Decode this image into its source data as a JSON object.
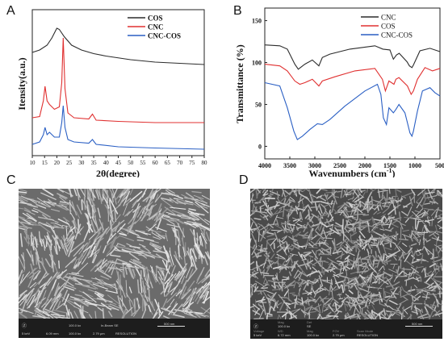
{
  "panels": {
    "a": "A",
    "b": "B",
    "c": "C",
    "d": "D"
  },
  "chart_data": [
    {
      "type": "line",
      "ylabel": "Itensity(a.u.)",
      "xlabel_text": "2",
      "xlabel_theta": "θ",
      "xlabel_unit": "(degree)",
      "xlim": [
        10,
        80
      ],
      "xticks": [
        "10",
        "15",
        "20",
        "25",
        "30",
        "35",
        "40",
        "45",
        "50",
        "55",
        "60",
        "65",
        "70",
        "75",
        "80"
      ],
      "legend_position": "top-right",
      "series": [
        {
          "name": "COS",
          "color": "#2b2b2b",
          "points": [
            [
              10,
              0.8
            ],
            [
              13,
              0.82
            ],
            [
              16,
              0.86
            ],
            [
              18,
              0.92
            ],
            [
              20,
              1.0
            ],
            [
              21,
              0.99
            ],
            [
              23,
              0.93
            ],
            [
              26,
              0.86
            ],
            [
              30,
              0.82
            ],
            [
              35,
              0.79
            ],
            [
              40,
              0.77
            ],
            [
              50,
              0.74
            ],
            [
              60,
              0.72
            ],
            [
              70,
              0.71
            ],
            [
              80,
              0.7
            ]
          ]
        },
        {
          "name": "CNC",
          "color": "#e03030",
          "points": [
            [
              10,
              0.26
            ],
            [
              13,
              0.27
            ],
            [
              14.5,
              0.4
            ],
            [
              15.2,
              0.52
            ],
            [
              16,
              0.4
            ],
            [
              17,
              0.37
            ],
            [
              19,
              0.33
            ],
            [
              21,
              0.35
            ],
            [
              22,
              0.55
            ],
            [
              22.6,
              0.92
            ],
            [
              23.3,
              0.5
            ],
            [
              24.5,
              0.3
            ],
            [
              27,
              0.26
            ],
            [
              33,
              0.25
            ],
            [
              34.5,
              0.29
            ],
            [
              36,
              0.24
            ],
            [
              45,
              0.23
            ],
            [
              60,
              0.22
            ],
            [
              80,
              0.22
            ]
          ]
        },
        {
          "name": "CNC-COS",
          "color": "#2a5fc4",
          "points": [
            [
              10,
              0.04
            ],
            [
              13,
              0.06
            ],
            [
              14.5,
              0.12
            ],
            [
              15.2,
              0.18
            ],
            [
              16,
              0.12
            ],
            [
              17,
              0.14
            ],
            [
              19,
              0.1
            ],
            [
              21,
              0.1
            ],
            [
              22,
              0.22
            ],
            [
              22.6,
              0.36
            ],
            [
              23.3,
              0.18
            ],
            [
              24.5,
              0.08
            ],
            [
              27,
              0.06
            ],
            [
              33,
              0.05
            ],
            [
              34.5,
              0.08
            ],
            [
              36,
              0.04
            ],
            [
              45,
              0.02
            ],
            [
              60,
              0.01
            ],
            [
              80,
              0.0
            ]
          ]
        }
      ]
    },
    {
      "type": "line",
      "ylabel": "Transmittance (%)",
      "xlabel": "Wavenumbers (cm",
      "xlabel_sup": "-1",
      "xlabel_close": ")",
      "xlim": [
        4000,
        500
      ],
      "ylim": [
        -15,
        165
      ],
      "xticks": [
        "4000",
        "3500",
        "3000",
        "2500",
        "2000",
        "1500",
        "1000",
        "500"
      ],
      "yticks": [
        "0",
        "50",
        "100",
        "150"
      ],
      "legend_position": "top-right",
      "series": [
        {
          "name": "CNC",
          "color": "#2b2b2b",
          "points": [
            [
              4000,
              121
            ],
            [
              3700,
              120
            ],
            [
              3550,
              116
            ],
            [
              3400,
              98
            ],
            [
              3330,
              92
            ],
            [
              3200,
              98
            ],
            [
              3050,
              103
            ],
            [
              2920,
              96
            ],
            [
              2850,
              106
            ],
            [
              2700,
              110
            ],
            [
              2300,
              116
            ],
            [
              1800,
              120
            ],
            [
              1640,
              116
            ],
            [
              1500,
              115
            ],
            [
              1430,
              104
            ],
            [
              1370,
              109
            ],
            [
              1315,
              111
            ],
            [
              1160,
              101
            ],
            [
              1110,
              96
            ],
            [
              1060,
              94
            ],
            [
              1030,
              97
            ],
            [
              900,
              114
            ],
            [
              700,
              117
            ],
            [
              500,
              113
            ]
          ]
        },
        {
          "name": "COS",
          "color": "#e03030",
          "points": [
            [
              4000,
              98
            ],
            [
              3700,
              96
            ],
            [
              3550,
              90
            ],
            [
              3400,
              78
            ],
            [
              3300,
              74
            ],
            [
              3200,
              76
            ],
            [
              3050,
              80
            ],
            [
              2920,
              72
            ],
            [
              2850,
              78
            ],
            [
              2600,
              83
            ],
            [
              2200,
              90
            ],
            [
              1800,
              93
            ],
            [
              1650,
              80
            ],
            [
              1590,
              66
            ],
            [
              1520,
              78
            ],
            [
              1420,
              74
            ],
            [
              1380,
              80
            ],
            [
              1320,
              82
            ],
            [
              1150,
              72
            ],
            [
              1075,
              62
            ],
            [
              1030,
              66
            ],
            [
              950,
              80
            ],
            [
              800,
              94
            ],
            [
              650,
              90
            ],
            [
              500,
              93
            ]
          ]
        },
        {
          "name": "CNC-COS",
          "color": "#2a5fc4",
          "points": [
            [
              4000,
              76
            ],
            [
              3700,
              72
            ],
            [
              3550,
              46
            ],
            [
              3420,
              18
            ],
            [
              3350,
              8
            ],
            [
              3250,
              12
            ],
            [
              3100,
              20
            ],
            [
              2950,
              27
            ],
            [
              2850,
              26
            ],
            [
              2700,
              32
            ],
            [
              2400,
              48
            ],
            [
              2000,
              66
            ],
            [
              1750,
              74
            ],
            [
              1680,
              62
            ],
            [
              1630,
              34
            ],
            [
              1570,
              26
            ],
            [
              1520,
              46
            ],
            [
              1430,
              40
            ],
            [
              1380,
              44
            ],
            [
              1320,
              50
            ],
            [
              1200,
              40
            ],
            [
              1150,
              28
            ],
            [
              1100,
              16
            ],
            [
              1060,
              12
            ],
            [
              1030,
              18
            ],
            [
              950,
              42
            ],
            [
              850,
              66
            ],
            [
              700,
              70
            ],
            [
              600,
              64
            ],
            [
              500,
              60
            ]
          ]
        }
      ]
    }
  ],
  "sem_c": {
    "row1": [
      "Ⓩ",
      "100.0 kx",
      "In-Beam SE",
      "500 nm"
    ],
    "row2": [
      "5 keV",
      "6.09 mm",
      "100.0 kx",
      "2.79 μm",
      "RESOLUTION"
    ]
  },
  "sem_d": {
    "labels": [
      "Mag",
      "Det",
      "Voltage",
      "WD",
      "Mag",
      "FOV",
      "Scan Mode"
    ],
    "row1": [
      "Ⓩ",
      "100.0 kx",
      "SE",
      "500 nm"
    ],
    "row2": [
      "5 keV",
      "6.72 mm",
      "100.0 kx",
      "2.79 μm",
      "RESOLUTION"
    ]
  }
}
